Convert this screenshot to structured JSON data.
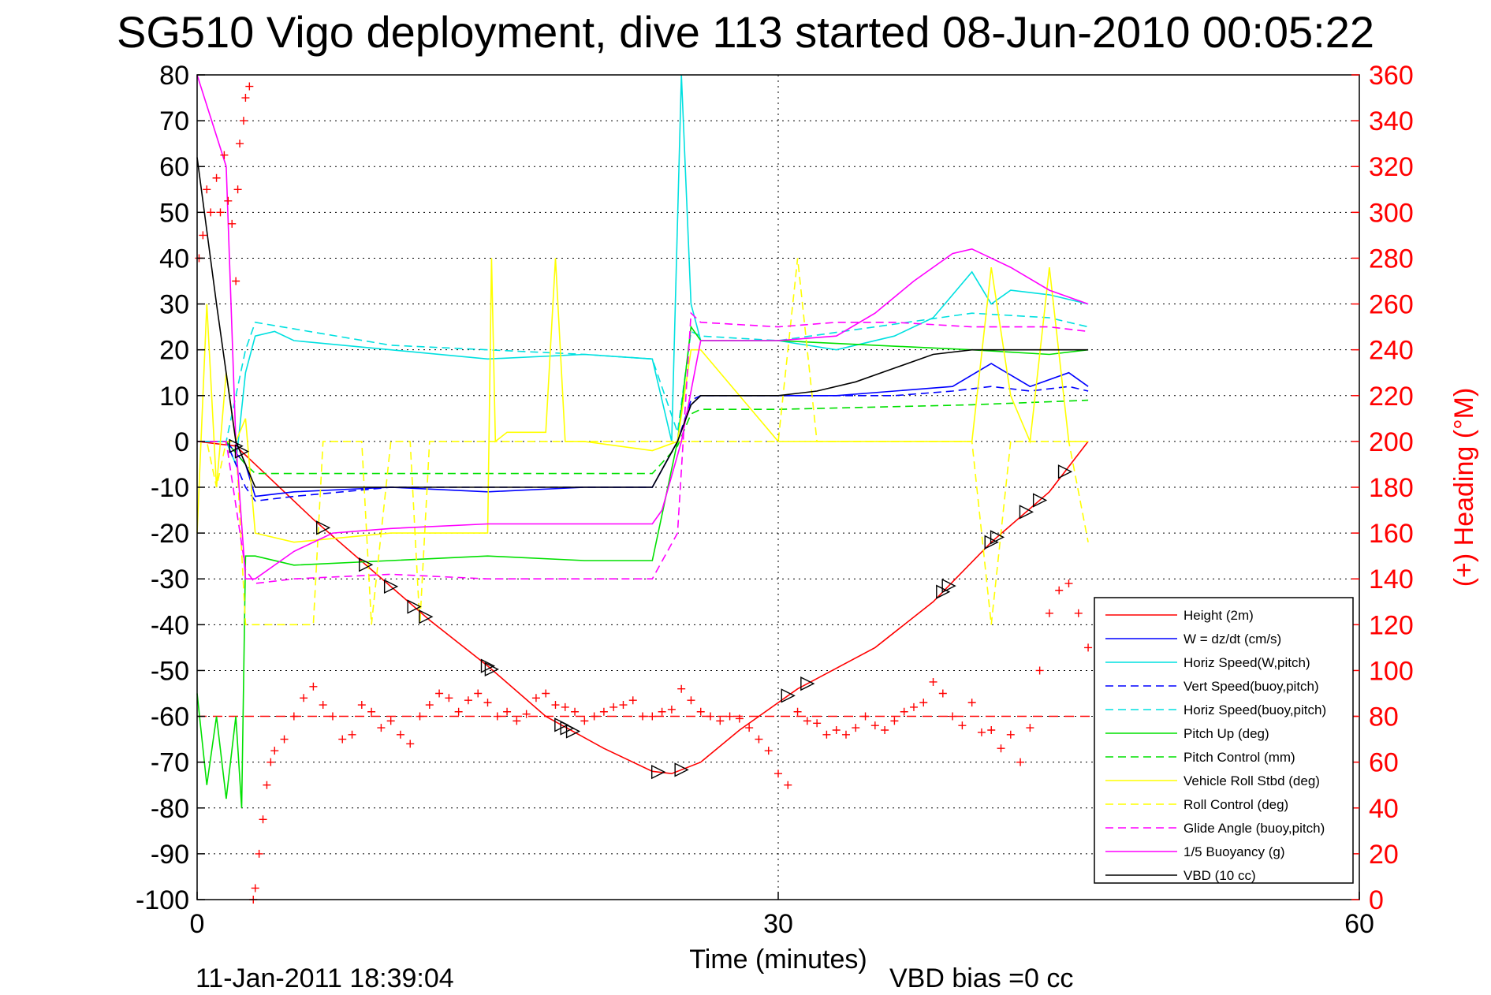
{
  "chart_data": {
    "type": "line",
    "title": "SG510 Vigo deployment, dive 113 started 08-Jun-2010 00:05:22",
    "xlabel": "Time (minutes)",
    "ylabel_right": "(+) Heading (°M)",
    "xlim": [
      0,
      60
    ],
    "ylim": [
      -100,
      80
    ],
    "ylim_right": [
      0,
      360
    ],
    "xticks": [
      "0",
      "30",
      "60"
    ],
    "yticks": [
      "80",
      "70",
      "60",
      "50",
      "40",
      "30",
      "20",
      "10",
      "0",
      "-10",
      "-20",
      "-30",
      "-40",
      "-50",
      "-60",
      "-70",
      "-80",
      "-90",
      "-100"
    ],
    "yticks_right": [
      "360",
      "340",
      "320",
      "300",
      "280",
      "260",
      "240",
      "220",
      "200",
      "180",
      "160",
      "140",
      "120",
      "100",
      "80",
      "60",
      "40",
      "20",
      "0"
    ],
    "grid": true,
    "legend_position": "bottom-right",
    "footer_left": "11-Jan-2011 18:39:04",
    "footer_right": "VBD bias =0 cc",
    "mean_heading_line": 80,
    "series": [
      {
        "name": "Height (2m)",
        "color": "#ff0000",
        "style": "solid",
        "x": [
          0,
          2,
          3,
          6,
          9,
          12,
          15,
          18,
          21,
          23.5,
          24.5,
          26,
          28,
          31,
          35,
          38,
          41,
          44,
          46
        ],
        "y": [
          0,
          -1,
          -5,
          -17,
          -28,
          -39,
          -49,
          -60,
          -67,
          -72,
          -72.5,
          -70,
          -63,
          -54,
          -45,
          -35,
          -22,
          -11,
          0
        ]
      },
      {
        "name": "W = dz/dt (cm/s)",
        "color": "#0000ff",
        "style": "solid",
        "x": [
          0,
          1.5,
          2.5,
          3,
          5,
          10,
          15,
          20,
          23.5,
          24.8,
          25.5,
          26,
          30,
          33,
          36,
          39,
          41,
          43,
          45,
          46
        ],
        "y": [
          0,
          0,
          -5,
          -12,
          -11,
          -10,
          -11,
          -10,
          -10,
          0,
          8,
          10,
          10,
          10,
          11,
          12,
          17,
          12,
          15,
          12
        ]
      },
      {
        "name": "Horiz Speed(W,pitch)",
        "color": "#00e0e0",
        "style": "solid",
        "x": [
          0,
          1.5,
          2,
          2.5,
          3,
          4,
          5,
          10,
          15,
          20,
          23.5,
          24.5,
          25,
          25.5,
          26,
          30,
          33,
          36,
          38,
          40,
          41,
          42,
          44,
          46
        ],
        "y": [
          0,
          0,
          -5,
          15,
          23,
          24,
          22,
          20,
          18,
          19,
          18,
          0,
          80,
          30,
          22,
          22,
          20,
          23,
          27,
          37,
          30,
          33,
          32,
          30
        ]
      },
      {
        "name": "Vert Speed(buoy,pitch)",
        "color": "#0000ff",
        "style": "dashed",
        "x": [
          0,
          1.5,
          2.5,
          3,
          5,
          10,
          15,
          20,
          23.5,
          24.8,
          25.5,
          26,
          30,
          33,
          36,
          39,
          41,
          43,
          45,
          46
        ],
        "y": [
          0,
          0,
          -10,
          -13,
          -12,
          -10,
          -10,
          -10,
          -10,
          0,
          9,
          10,
          10,
          10,
          10,
          11,
          12,
          11,
          12,
          11
        ]
      },
      {
        "name": "Horiz Speed(buoy,pitch)",
        "color": "#00e0e0",
        "style": "dashed",
        "x": [
          0,
          1.5,
          2.5,
          3,
          10,
          20,
          23.5,
          24.8,
          25.5,
          26,
          30,
          35,
          40,
          44,
          46
        ],
        "y": [
          0,
          0,
          20,
          26,
          21,
          19,
          18,
          2,
          24,
          23,
          22,
          25,
          28,
          27,
          25
        ]
      },
      {
        "name": "Pitch Up (deg)",
        "color": "#00e000",
        "style": "solid",
        "x": [
          0,
          0.5,
          1,
          1.5,
          2,
          2.3,
          2.5,
          3,
          5,
          10,
          15,
          20,
          23.5,
          24.8,
          25.5,
          26,
          30,
          35,
          40,
          44,
          46
        ],
        "y": [
          -55,
          -75,
          -60,
          -78,
          -60,
          -80,
          -25,
          -25,
          -27,
          -26,
          -25,
          -26,
          -26,
          0,
          25,
          22,
          22,
          21,
          20,
          19,
          20
        ]
      },
      {
        "name": "Pitch Control (mm)",
        "color": "#00e000",
        "style": "dashed",
        "x": [
          0,
          1.5,
          2.5,
          3,
          10,
          20,
          23.5,
          24.8,
          25.5,
          26,
          30,
          40,
          46
        ],
        "y": [
          0,
          0,
          -5,
          -7,
          -7,
          -7,
          -7,
          -1,
          6,
          7,
          7,
          8,
          9
        ]
      },
      {
        "name": "Vehicle Roll Stbd (deg)",
        "color": "#ffff00",
        "style": "solid",
        "x": [
          0,
          0.5,
          1,
          1.5,
          2,
          2.5,
          3,
          5,
          10,
          15,
          15.2,
          15.4,
          16,
          17,
          18,
          18.5,
          19,
          20,
          23.5,
          24.8,
          25.5,
          26,
          30,
          35,
          40,
          41,
          42,
          43,
          44,
          45,
          46
        ],
        "y": [
          -20,
          30,
          -10,
          15,
          0,
          5,
          -20,
          -22,
          -20,
          -20,
          40,
          0,
          2,
          2,
          2,
          40,
          0,
          0,
          -2,
          0,
          20,
          20,
          0,
          0,
          0,
          38,
          10,
          0,
          38,
          0,
          0
        ]
      },
      {
        "name": "Roll Control (deg)",
        "color": "#ffff00",
        "style": "dashed",
        "x": [
          0,
          0.5,
          1,
          1.5,
          2,
          2.5,
          3,
          6,
          6.5,
          8.5,
          9,
          10,
          11,
          11.5,
          12,
          20,
          23.5,
          24.8,
          25.5,
          30,
          31,
          32,
          40,
          41,
          42,
          44,
          45,
          46
        ],
        "y": [
          0,
          0,
          -10,
          0,
          0,
          -40,
          -40,
          -40,
          0,
          0,
          -40,
          0,
          0,
          -40,
          0,
          0,
          0,
          0,
          0,
          0,
          40,
          0,
          0,
          -40,
          0,
          0,
          0,
          -22
        ]
      },
      {
        "name": "Glide Angle (buoy,pitch)",
        "color": "#ff00ff",
        "style": "dashed",
        "x": [
          0,
          1.5,
          2.5,
          3,
          5,
          10,
          15,
          20,
          23.5,
          24.8,
          25.5,
          26,
          30,
          33,
          36,
          40,
          44,
          46
        ],
        "y": [
          0,
          0,
          -28,
          -31,
          -30,
          -29,
          -30,
          -30,
          -30,
          -20,
          28,
          26,
          25,
          26,
          26,
          25,
          25,
          24
        ]
      },
      {
        "name": "1/5 Buoyancy (g)",
        "color": "#ff00ff",
        "style": "solid",
        "x": [
          0,
          1.5,
          2,
          2.5,
          3,
          5,
          7,
          10,
          15,
          20,
          23.5,
          24,
          25,
          26,
          30,
          33,
          35,
          37,
          39,
          40,
          42,
          44,
          46
        ],
        "y": [
          80,
          60,
          0,
          -30,
          -30,
          -24,
          -20,
          -19,
          -18,
          -18,
          -18,
          -15,
          0,
          22,
          22,
          23,
          28,
          35,
          41,
          42,
          38,
          33,
          30
        ]
      },
      {
        "name": "VBD (10 cc)",
        "color": "#000000",
        "style": "solid",
        "x": [
          0,
          1,
          2,
          2.5,
          3,
          5,
          10,
          15,
          20,
          23.5,
          24.8,
          25.5,
          26,
          30,
          32,
          34,
          36,
          38,
          40,
          42,
          44,
          46
        ],
        "y": [
          62,
          30,
          0,
          -5,
          -10,
          -10,
          -10,
          -10,
          -10,
          -10,
          0,
          8,
          10,
          10,
          11,
          13,
          16,
          19,
          20,
          20,
          20,
          20
        ]
      }
    ],
    "heading_points": {
      "name": "(+) Heading",
      "color": "#ff0000",
      "x": [
        0.1,
        0.3,
        0.5,
        0.7,
        1,
        1.2,
        1.4,
        1.6,
        1.8,
        2,
        2.1,
        2.2,
        2.4,
        2.5,
        2.7,
        2.9,
        3,
        3.2,
        3.4,
        3.6,
        3.8,
        4,
        4.5,
        5,
        5.5,
        6,
        6.5,
        7,
        7.5,
        8,
        8.5,
        9,
        9.5,
        10,
        10.5,
        11,
        11.5,
        12,
        12.5,
        13,
        13.5,
        14,
        14.5,
        15,
        15.5,
        16,
        16.5,
        17,
        17.5,
        18,
        18.5,
        19,
        19.5,
        20,
        20.5,
        21,
        21.5,
        22,
        22.5,
        23,
        23.5,
        24,
        24.5,
        25,
        25.5,
        26,
        26.5,
        27,
        27.5,
        28,
        28.5,
        29,
        29.5,
        30,
        30.5,
        31,
        31.5,
        32,
        32.5,
        33,
        33.5,
        34,
        34.5,
        35,
        35.5,
        36,
        36.5,
        37,
        37.5,
        38,
        38.5,
        39,
        39.5,
        40,
        40.5,
        41,
        41.5,
        42,
        42.5,
        43,
        43.5,
        44,
        44.5,
        45,
        45.5,
        46
      ],
      "y": [
        280,
        290,
        310,
        300,
        315,
        300,
        325,
        305,
        295,
        270,
        310,
        330,
        340,
        350,
        355,
        0,
        5,
        20,
        35,
        50,
        60,
        65,
        70,
        80,
        88,
        93,
        85,
        80,
        70,
        72,
        85,
        82,
        75,
        78,
        72,
        68,
        80,
        85,
        90,
        88,
        82,
        87,
        90,
        86,
        80,
        82,
        78,
        81,
        88,
        90,
        85,
        84,
        82,
        78,
        80,
        82,
        84,
        85,
        87,
        80,
        80,
        82,
        83,
        92,
        87,
        82,
        80,
        78,
        80,
        79,
        75,
        70,
        65,
        55,
        50,
        82,
        78,
        77,
        72,
        74,
        72,
        75,
        80,
        76,
        74,
        78,
        82,
        84,
        86,
        95,
        90,
        80,
        76,
        86,
        73,
        74,
        66,
        72,
        60,
        75,
        100,
        125,
        135,
        138,
        125,
        110
      ]
    },
    "triangle_markers_x": [
      2,
      2.3,
      6.5,
      8.7,
      10,
      11.2,
      11.8,
      15,
      15.2,
      18.8,
      19.1,
      19.4,
      23.8,
      25,
      30.5,
      31.5,
      38.5,
      38.8,
      41,
      41.3,
      42.8,
      43.5,
      44.8
    ]
  }
}
